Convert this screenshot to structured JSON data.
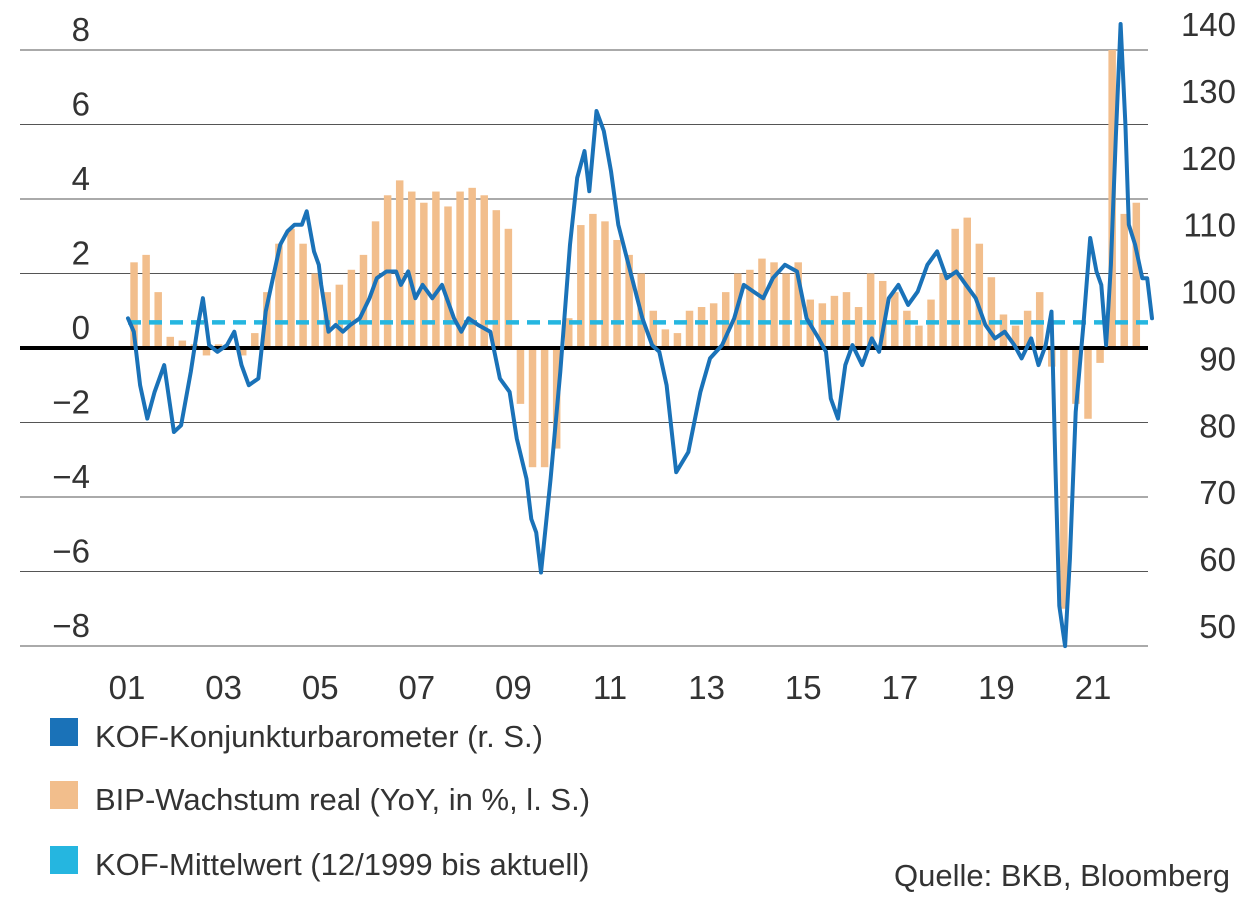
{
  "chart_data": {
    "type": "bar+line",
    "title": "",
    "source": "Quelle: BKB, Bloomberg",
    "x_axis": {
      "tick_labels": [
        "01",
        "03",
        "05",
        "07",
        "09",
        "11",
        "13",
        "15",
        "17",
        "19",
        "21"
      ],
      "range": [
        2001.0,
        2022.2
      ]
    },
    "left_axis": {
      "label": "",
      "ticks": [
        "8",
        "6",
        "4",
        "2",
        "0",
        "−2",
        "−4",
        "−6",
        "−8"
      ],
      "range": [
        -8,
        8
      ]
    },
    "right_axis": {
      "label": "",
      "ticks": [
        "140",
        "130",
        "120",
        "110",
        "100",
        "90",
        "80",
        "70",
        "60",
        "50"
      ],
      "range": [
        45,
        142
      ]
    },
    "colors": {
      "kof": "#1a72b8",
      "bip": "#f2be8c",
      "mean": "#25b6e0",
      "zero": "#000000",
      "grid": "#555555"
    },
    "legend": [
      {
        "label": "KOF-Konjunkturbarometer (r. S.)",
        "color": "#1a72b8"
      },
      {
        "label": "BIP-Wachstum real (YoY, in %, l. S.)",
        "color": "#f2be8c"
      },
      {
        "label": "KOF-Mittelwert (12/1999 bis aktuell)",
        "color": "#25b6e0"
      }
    ],
    "series": [
      {
        "name": "BIP-Wachstum real (YoY, in %, l. S.)",
        "axis": "left",
        "type": "bar",
        "data": [
          [
            2001.0,
            2.3
          ],
          [
            2001.25,
            2.5
          ],
          [
            2001.5,
            1.5
          ],
          [
            2001.75,
            0.3
          ],
          [
            2002.0,
            0.2
          ],
          [
            2002.25,
            0.1
          ],
          [
            2002.5,
            -0.2
          ],
          [
            2002.75,
            0.1
          ],
          [
            2003.0,
            0.0
          ],
          [
            2003.25,
            -0.2
          ],
          [
            2003.5,
            0.4
          ],
          [
            2003.75,
            1.5
          ],
          [
            2004.0,
            2.8
          ],
          [
            2004.25,
            3.2
          ],
          [
            2004.5,
            2.8
          ],
          [
            2004.75,
            2.0
          ],
          [
            2005.0,
            1.5
          ],
          [
            2005.25,
            1.7
          ],
          [
            2005.5,
            2.1
          ],
          [
            2005.75,
            2.5
          ],
          [
            2006.0,
            3.4
          ],
          [
            2006.25,
            4.1
          ],
          [
            2006.5,
            4.5
          ],
          [
            2006.75,
            4.2
          ],
          [
            2007.0,
            3.9
          ],
          [
            2007.25,
            4.2
          ],
          [
            2007.5,
            3.8
          ],
          [
            2007.75,
            4.2
          ],
          [
            2008.0,
            4.3
          ],
          [
            2008.25,
            4.1
          ],
          [
            2008.5,
            3.7
          ],
          [
            2008.75,
            3.2
          ],
          [
            2009.0,
            -1.5
          ],
          [
            2009.25,
            -3.2
          ],
          [
            2009.5,
            -3.2
          ],
          [
            2009.75,
            -2.7
          ],
          [
            2010.0,
            0.8
          ],
          [
            2010.25,
            3.3
          ],
          [
            2010.5,
            3.6
          ],
          [
            2010.75,
            3.4
          ],
          [
            2011.0,
            2.9
          ],
          [
            2011.25,
            2.5
          ],
          [
            2011.5,
            2.0
          ],
          [
            2011.75,
            1.0
          ],
          [
            2012.0,
            0.5
          ],
          [
            2012.25,
            0.4
          ],
          [
            2012.5,
            1.0
          ],
          [
            2012.75,
            1.1
          ],
          [
            2013.0,
            1.2
          ],
          [
            2013.25,
            1.5
          ],
          [
            2013.5,
            2.0
          ],
          [
            2013.75,
            2.1
          ],
          [
            2014.0,
            2.4
          ],
          [
            2014.25,
            2.3
          ],
          [
            2014.5,
            2.0
          ],
          [
            2014.75,
            2.3
          ],
          [
            2015.0,
            1.3
          ],
          [
            2015.25,
            1.2
          ],
          [
            2015.5,
            1.4
          ],
          [
            2015.75,
            1.5
          ],
          [
            2016.0,
            1.1
          ],
          [
            2016.25,
            2.0
          ],
          [
            2016.5,
            1.8
          ],
          [
            2016.75,
            1.5
          ],
          [
            2017.0,
            1.0
          ],
          [
            2017.25,
            0.6
          ],
          [
            2017.5,
            1.3
          ],
          [
            2017.75,
            2.0
          ],
          [
            2018.0,
            3.2
          ],
          [
            2018.25,
            3.5
          ],
          [
            2018.5,
            2.8
          ],
          [
            2018.75,
            1.9
          ],
          [
            2019.0,
            0.9
          ],
          [
            2019.25,
            0.6
          ],
          [
            2019.5,
            1.0
          ],
          [
            2019.75,
            1.5
          ],
          [
            2020.0,
            -0.5
          ],
          [
            2020.25,
            -7.0
          ],
          [
            2020.5,
            -1.5
          ],
          [
            2020.75,
            -1.9
          ],
          [
            2021.0,
            -0.4
          ],
          [
            2021.25,
            8.0
          ],
          [
            2021.5,
            3.6
          ],
          [
            2021.75,
            3.9
          ]
        ]
      },
      {
        "name": "KOF-Konjunkturbarometer (r. S.)",
        "axis": "right",
        "type": "line",
        "data": [
          [
            2001.0,
            96
          ],
          [
            2001.12,
            94
          ],
          [
            2001.25,
            86
          ],
          [
            2001.4,
            81
          ],
          [
            2001.55,
            85
          ],
          [
            2001.75,
            89
          ],
          [
            2001.95,
            79
          ],
          [
            2002.1,
            80
          ],
          [
            2002.3,
            88
          ],
          [
            2002.45,
            95
          ],
          [
            2002.55,
            99
          ],
          [
            2002.68,
            92
          ],
          [
            2002.85,
            91
          ],
          [
            2003.05,
            92
          ],
          [
            2003.2,
            94
          ],
          [
            2003.35,
            89
          ],
          [
            2003.5,
            86
          ],
          [
            2003.7,
            87
          ],
          [
            2003.85,
            97
          ],
          [
            2004.0,
            102
          ],
          [
            2004.15,
            107
          ],
          [
            2004.3,
            109
          ],
          [
            2004.45,
            110
          ],
          [
            2004.6,
            110
          ],
          [
            2004.7,
            112
          ],
          [
            2004.85,
            106
          ],
          [
            2004.95,
            104
          ],
          [
            2005.0,
            101
          ],
          [
            2005.15,
            94
          ],
          [
            2005.3,
            95
          ],
          [
            2005.45,
            94
          ],
          [
            2005.6,
            95
          ],
          [
            2005.8,
            96
          ],
          [
            2006.0,
            99
          ],
          [
            2006.15,
            102
          ],
          [
            2006.35,
            103
          ],
          [
            2006.55,
            103
          ],
          [
            2006.65,
            101
          ],
          [
            2006.8,
            103
          ],
          [
            2006.95,
            99
          ],
          [
            2007.1,
            101
          ],
          [
            2007.3,
            99
          ],
          [
            2007.5,
            101
          ],
          [
            2007.75,
            96
          ],
          [
            2007.9,
            94
          ],
          [
            2008.05,
            96
          ],
          [
            2008.25,
            95
          ],
          [
            2008.5,
            94
          ],
          [
            2008.7,
            87
          ],
          [
            2008.9,
            85
          ],
          [
            2009.05,
            78
          ],
          [
            2009.25,
            72
          ],
          [
            2009.35,
            66
          ],
          [
            2009.45,
            64
          ],
          [
            2009.55,
            58
          ],
          [
            2009.75,
            72
          ],
          [
            2009.95,
            88
          ],
          [
            2010.15,
            107
          ],
          [
            2010.3,
            117
          ],
          [
            2010.45,
            121
          ],
          [
            2010.55,
            115
          ],
          [
            2010.7,
            127
          ],
          [
            2010.85,
            124
          ],
          [
            2011.0,
            118
          ],
          [
            2011.15,
            110
          ],
          [
            2011.4,
            103
          ],
          [
            2011.65,
            96
          ],
          [
            2011.85,
            92
          ],
          [
            2012.0,
            91
          ],
          [
            2012.15,
            86
          ],
          [
            2012.35,
            73
          ],
          [
            2012.6,
            76
          ],
          [
            2012.85,
            85
          ],
          [
            2013.05,
            90
          ],
          [
            2013.3,
            92
          ],
          [
            2013.55,
            96
          ],
          [
            2013.75,
            101
          ],
          [
            2013.95,
            100
          ],
          [
            2014.15,
            99
          ],
          [
            2014.35,
            102
          ],
          [
            2014.6,
            104
          ],
          [
            2014.85,
            103
          ],
          [
            2015.05,
            96
          ],
          [
            2015.3,
            93
          ],
          [
            2015.45,
            91
          ],
          [
            2015.55,
            84
          ],
          [
            2015.7,
            81
          ],
          [
            2015.85,
            89
          ],
          [
            2016.0,
            92
          ],
          [
            2016.2,
            89
          ],
          [
            2016.4,
            93
          ],
          [
            2016.55,
            91
          ],
          [
            2016.75,
            99
          ],
          [
            2016.95,
            101
          ],
          [
            2017.15,
            98
          ],
          [
            2017.35,
            100
          ],
          [
            2017.55,
            104
          ],
          [
            2017.75,
            106
          ],
          [
            2017.95,
            102
          ],
          [
            2018.15,
            103
          ],
          [
            2018.35,
            101
          ],
          [
            2018.55,
            99
          ],
          [
            2018.75,
            95
          ],
          [
            2018.95,
            93
          ],
          [
            2019.15,
            94
          ],
          [
            2019.35,
            92
          ],
          [
            2019.5,
            90
          ],
          [
            2019.7,
            93
          ],
          [
            2019.85,
            89
          ],
          [
            2020.0,
            92
          ],
          [
            2020.12,
            97
          ],
          [
            2020.2,
            74
          ],
          [
            2020.28,
            53
          ],
          [
            2020.4,
            47
          ],
          [
            2020.5,
            60
          ],
          [
            2020.62,
            82
          ],
          [
            2020.78,
            95
          ],
          [
            2020.92,
            108
          ],
          [
            2021.05,
            103
          ],
          [
            2021.15,
            101
          ],
          [
            2021.25,
            92
          ],
          [
            2021.35,
            104
          ],
          [
            2021.45,
            123
          ],
          [
            2021.55,
            140
          ],
          [
            2021.65,
            125
          ],
          [
            2021.72,
            110
          ],
          [
            2021.85,
            107
          ],
          [
            2022.0,
            102
          ],
          [
            2022.1,
            102
          ],
          [
            2022.2,
            96
          ]
        ]
      },
      {
        "name": "KOF-Mittelwert (12/1999 bis aktuell)",
        "axis": "right",
        "type": "line",
        "style": "dashed",
        "data": [
          [
            2001.0,
            95.4
          ],
          [
            2022.2,
            95.4
          ]
        ]
      }
    ]
  }
}
